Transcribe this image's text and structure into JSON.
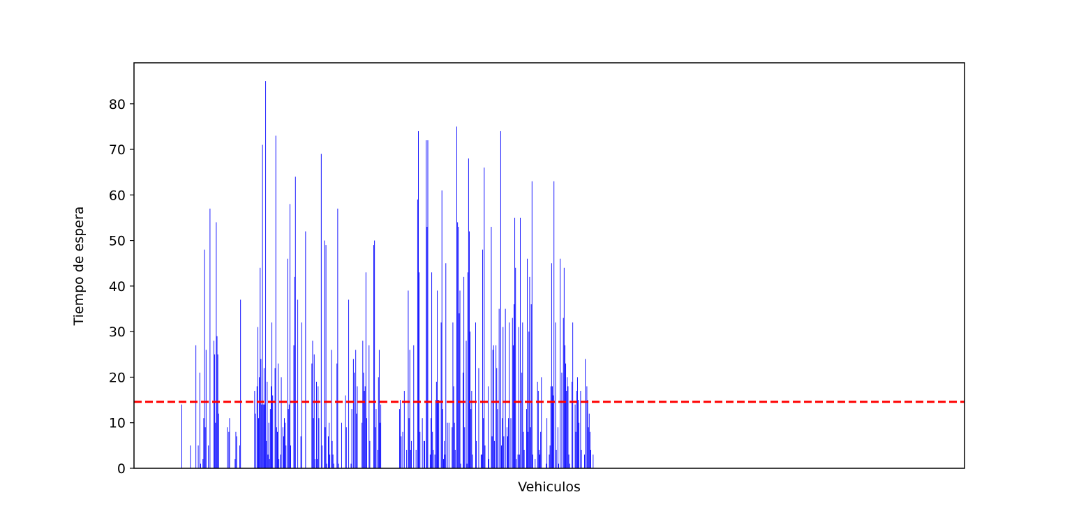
{
  "chart_data": {
    "type": "bar",
    "title": "",
    "xlabel": "Vehiculos",
    "ylabel": "Tiempo de espera",
    "ylim": [
      0,
      89
    ],
    "yticks": [
      0,
      10,
      20,
      30,
      40,
      50,
      60,
      70,
      80
    ],
    "xlim": [
      -61,
      999
    ],
    "grid": false,
    "bar_color": "#0000ff",
    "mean_line": {
      "value": 14.6,
      "color": "#ff0000",
      "style": "dashed"
    },
    "values": [
      14,
      0,
      0,
      0,
      0,
      0,
      0,
      0,
      0,
      0,
      0,
      5,
      0,
      0,
      0,
      0,
      0,
      0,
      27,
      0,
      0,
      5,
      0,
      21,
      1,
      0,
      0,
      2,
      11,
      48,
      9,
      26,
      0,
      0,
      5,
      0,
      57,
      0,
      0,
      0,
      0,
      28,
      25,
      10,
      54,
      29,
      25,
      12,
      0,
      0,
      0,
      0,
      0,
      0,
      0,
      0,
      0,
      0,
      9,
      0,
      8,
      11,
      0,
      0,
      0,
      0,
      0,
      0,
      2,
      8,
      7,
      0,
      0,
      0,
      5,
      37,
      0,
      0,
      0,
      0,
      0,
      0,
      0,
      0,
      0,
      0,
      0,
      0,
      0,
      0,
      0,
      0,
      0,
      17,
      12,
      0,
      18,
      31,
      11,
      20,
      44,
      24,
      14,
      71,
      14,
      22,
      14,
      85,
      6,
      19,
      3,
      10,
      2,
      13,
      18,
      32,
      16,
      0,
      0,
      22,
      73,
      9,
      8,
      23,
      2,
      0,
      3,
      20,
      0,
      9,
      7,
      11,
      10,
      5,
      0,
      46,
      13,
      14,
      58,
      5,
      0,
      0,
      0,
      27,
      42,
      64,
      0,
      0,
      37,
      0,
      0,
      0,
      7,
      32,
      0,
      0,
      0,
      0,
      52,
      0,
      0,
      0,
      0,
      0,
      0,
      0,
      23,
      28,
      11,
      25,
      2,
      0,
      19,
      2,
      18,
      11,
      0,
      0,
      69,
      5,
      0,
      0,
      50,
      9,
      49,
      1,
      0,
      7,
      10,
      3,
      0,
      26,
      6,
      3,
      1,
      0,
      0,
      0,
      23,
      57,
      1,
      0,
      0,
      0,
      10,
      0,
      0,
      0,
      0,
      16,
      9,
      0,
      0,
      37,
      0,
      0,
      1,
      13,
      0,
      24,
      21,
      0,
      26,
      12,
      18,
      0,
      0,
      0,
      0,
      0,
      10,
      28,
      21,
      17,
      18,
      43,
      11,
      0,
      0,
      27,
      6,
      0,
      0,
      0,
      0,
      49,
      50,
      9,
      13,
      0,
      4,
      20,
      26,
      10,
      14,
      0,
      0,
      0,
      0,
      0,
      0,
      0,
      0,
      0,
      0,
      0,
      0,
      0,
      0,
      0,
      0,
      0,
      0,
      0,
      0,
      0,
      0,
      0,
      13,
      15,
      7,
      0,
      8,
      0,
      17,
      0,
      0,
      4,
      0,
      39,
      11,
      26,
      4,
      6,
      0,
      0,
      27,
      0,
      0,
      4,
      0,
      59,
      74,
      43,
      8,
      0,
      0,
      11,
      0,
      6,
      6,
      0,
      72,
      53,
      72,
      0,
      0,
      3,
      11,
      43,
      8,
      4,
      0,
      3,
      15,
      19,
      39,
      15,
      15,
      0,
      0,
      32,
      61,
      13,
      2,
      6,
      3,
      45,
      0,
      10,
      0,
      10,
      0,
      0,
      0,
      9,
      32,
      18,
      10,
      4,
      0,
      75,
      54,
      53,
      34,
      39,
      1,
      0,
      0,
      21,
      42,
      9,
      0,
      28,
      1,
      43,
      68,
      52,
      30,
      13,
      17,
      3,
      0,
      0,
      0,
      32,
      6,
      0,
      0,
      22,
      0,
      0,
      3,
      3,
      48,
      11,
      66,
      5,
      0,
      0,
      0,
      18,
      2,
      0,
      0,
      53,
      7,
      26,
      27,
      6,
      0,
      27,
      22,
      13,
      0,
      35,
      0,
      74,
      5,
      11,
      31,
      7,
      0,
      35,
      0,
      9,
      7,
      11,
      32,
      0,
      11,
      0,
      33,
      27,
      36,
      55,
      44,
      2,
      0,
      3,
      31,
      3,
      55,
      0,
      21,
      32,
      8,
      4,
      0,
      0,
      13,
      46,
      8,
      30,
      42,
      9,
      36,
      63,
      3,
      0,
      0,
      2,
      0,
      0,
      19,
      17,
      4,
      3,
      8,
      20,
      0,
      0,
      0,
      0,
      0,
      1,
      11,
      0,
      0,
      3,
      5,
      18,
      45,
      18,
      16,
      63,
      0,
      32,
      4,
      0,
      9,
      1,
      0,
      46,
      0,
      21,
      0,
      33,
      44,
      27,
      23,
      17,
      20,
      18,
      3,
      1,
      0,
      0,
      19,
      32,
      0,
      0,
      14,
      8,
      17,
      20,
      15,
      10,
      0,
      17,
      4,
      0,
      0,
      0,
      3,
      24,
      0,
      18,
      15,
      9,
      12,
      8,
      4,
      0,
      0,
      3
    ]
  }
}
